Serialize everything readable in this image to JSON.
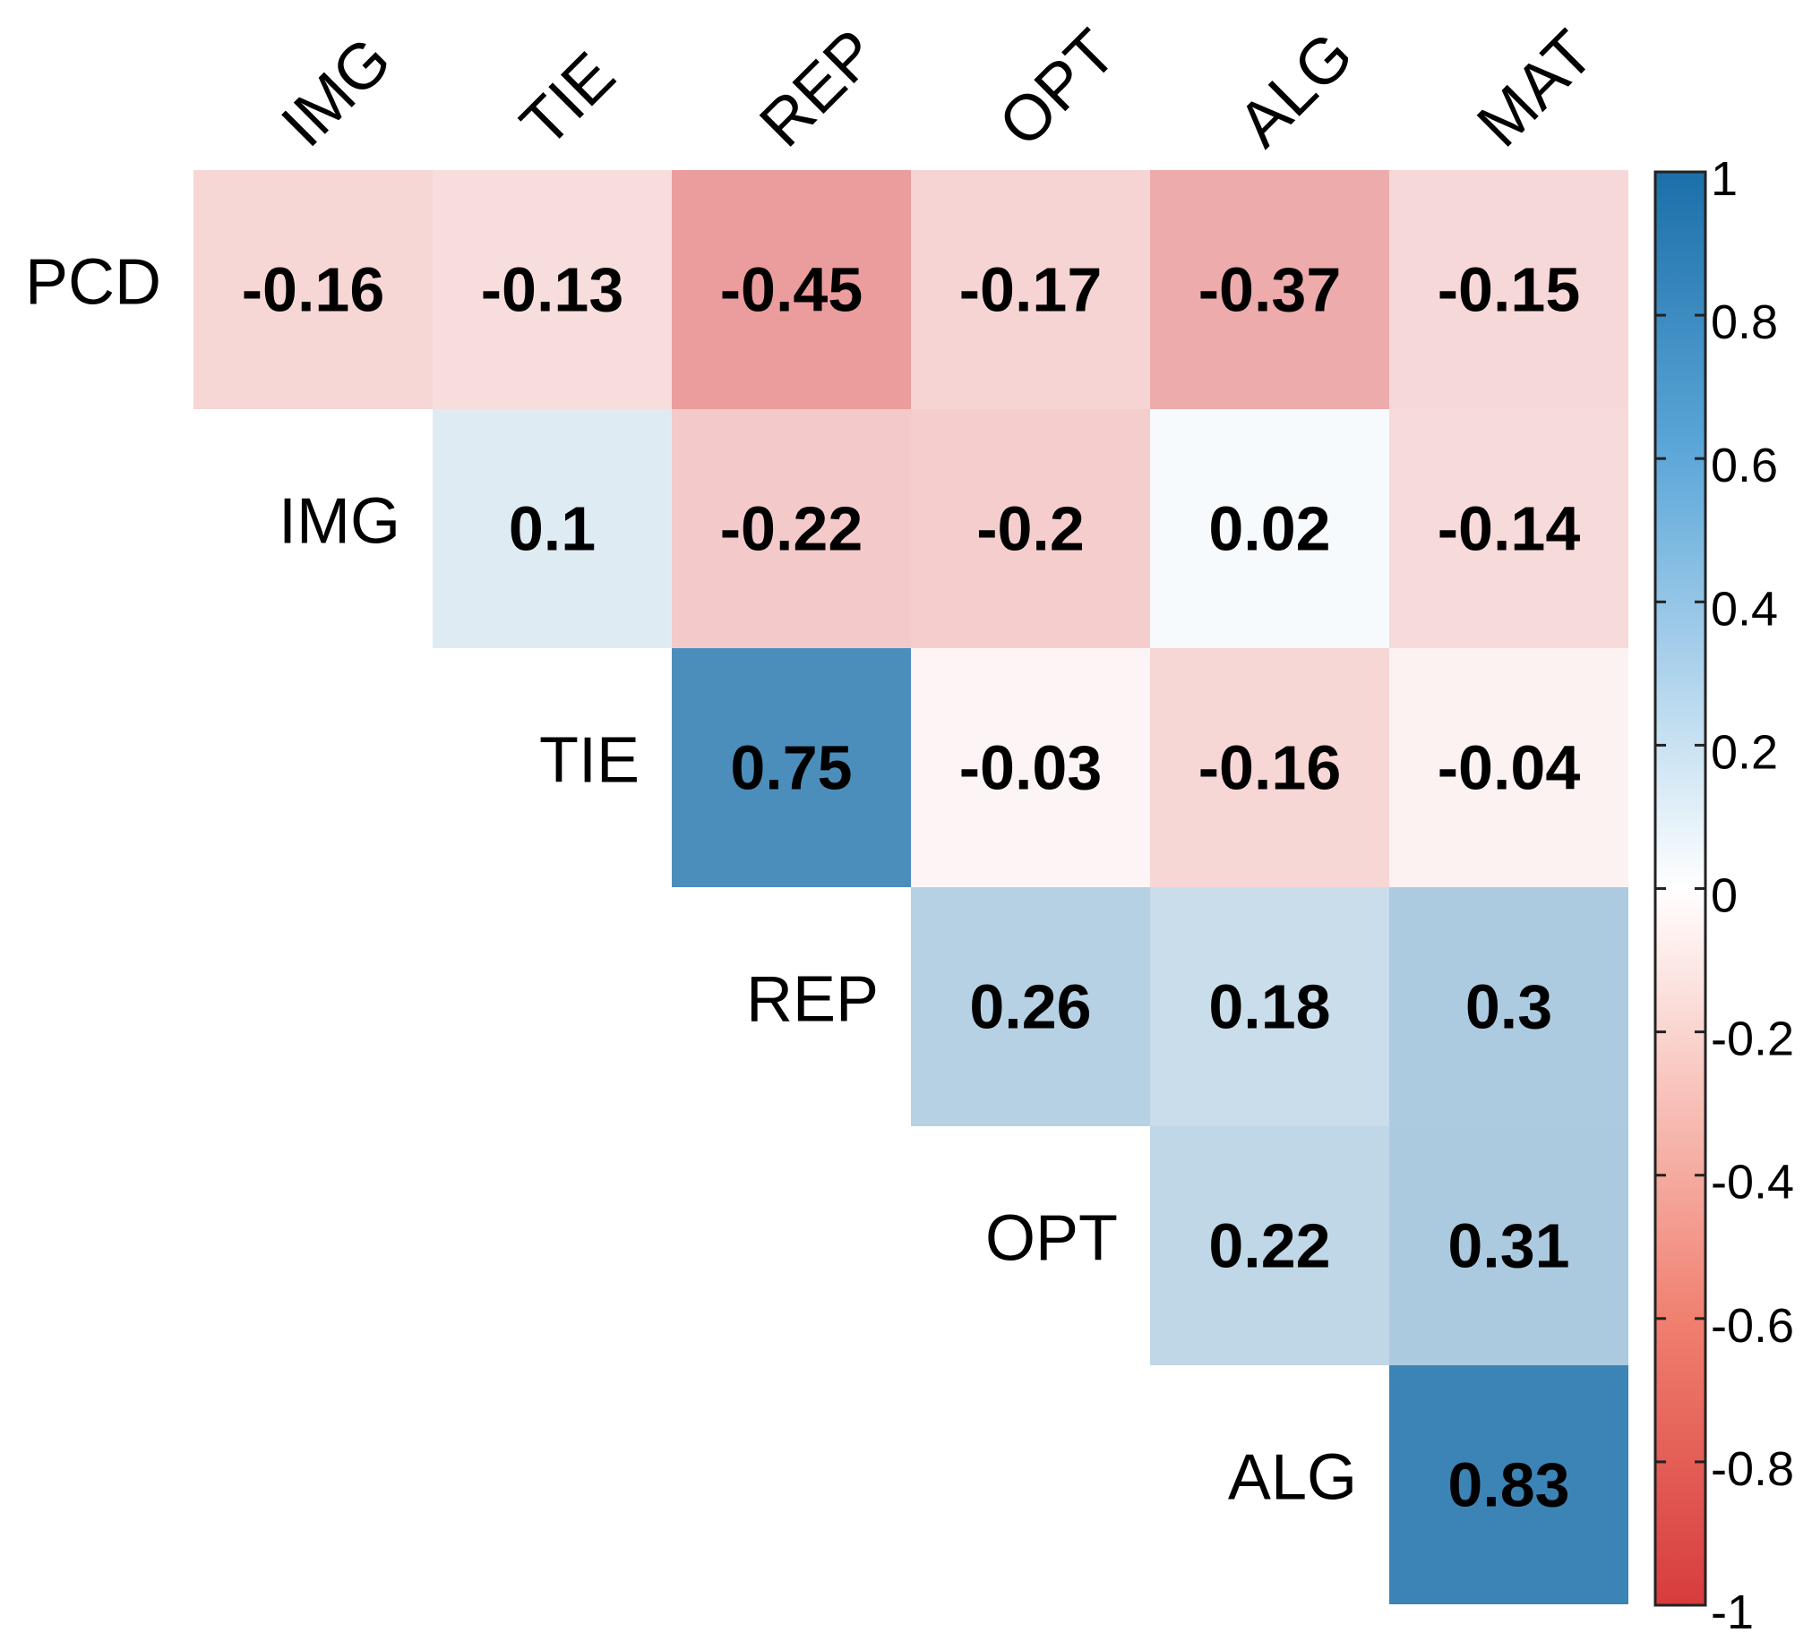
{
  "chart_data": {
    "type": "heatmap",
    "title": "",
    "xlabel": "",
    "ylabel": "",
    "columns": [
      "IMG",
      "TIE",
      "REP",
      "OPT",
      "ALG",
      "MAT"
    ],
    "rows": [
      "PCD",
      "IMG",
      "TIE",
      "REP",
      "OPT",
      "ALG"
    ],
    "cells": [
      {
        "row": 0,
        "col": 0,
        "value": -0.16,
        "label": "-0.16"
      },
      {
        "row": 0,
        "col": 1,
        "value": -0.13,
        "label": "-0.13"
      },
      {
        "row": 0,
        "col": 2,
        "value": -0.45,
        "label": "-0.45"
      },
      {
        "row": 0,
        "col": 3,
        "value": -0.17,
        "label": "-0.17"
      },
      {
        "row": 0,
        "col": 4,
        "value": -0.37,
        "label": "-0.37"
      },
      {
        "row": 0,
        "col": 5,
        "value": -0.15,
        "label": "-0.15"
      },
      {
        "row": 1,
        "col": 1,
        "value": 0.1,
        "label": "0.1"
      },
      {
        "row": 1,
        "col": 2,
        "value": -0.22,
        "label": "-0.22"
      },
      {
        "row": 1,
        "col": 3,
        "value": -0.2,
        "label": "-0.2"
      },
      {
        "row": 1,
        "col": 4,
        "value": 0.02,
        "label": "0.02"
      },
      {
        "row": 1,
        "col": 5,
        "value": -0.14,
        "label": "-0.14"
      },
      {
        "row": 2,
        "col": 2,
        "value": 0.75,
        "label": "0.75"
      },
      {
        "row": 2,
        "col": 3,
        "value": -0.03,
        "label": "-0.03"
      },
      {
        "row": 2,
        "col": 4,
        "value": -0.16,
        "label": "-0.16"
      },
      {
        "row": 2,
        "col": 5,
        "value": -0.04,
        "label": "-0.04"
      },
      {
        "row": 3,
        "col": 3,
        "value": 0.26,
        "label": "0.26"
      },
      {
        "row": 3,
        "col": 4,
        "value": 0.18,
        "label": "0.18"
      },
      {
        "row": 3,
        "col": 5,
        "value": 0.3,
        "label": "0.3"
      },
      {
        "row": 4,
        "col": 4,
        "value": 0.22,
        "label": "0.22"
      },
      {
        "row": 4,
        "col": 5,
        "value": 0.31,
        "label": "0.31"
      },
      {
        "row": 5,
        "col": 5,
        "value": 0.83,
        "label": "0.83"
      }
    ],
    "colorbar": {
      "range": [
        -1,
        1
      ],
      "ticks": [
        {
          "value": 1,
          "label": "1"
        },
        {
          "value": 0.8,
          "label": "0.8"
        },
        {
          "value": 0.6,
          "label": "0.6"
        },
        {
          "value": 0.4,
          "label": "0.4"
        },
        {
          "value": 0.2,
          "label": "0.2"
        },
        {
          "value": 0,
          "label": "0"
        },
        {
          "value": -0.2,
          "label": "-0.2"
        },
        {
          "value": -0.4,
          "label": "-0.4"
        },
        {
          "value": -0.6,
          "label": "-0.6"
        },
        {
          "value": -0.8,
          "label": "-0.8"
        },
        {
          "value": -1,
          "label": "-1"
        }
      ],
      "color_negative": "#D73C3C",
      "color_zero": "#FFFFFF",
      "color_positive": "#1B6FA8"
    },
    "grid": false,
    "legend": "right"
  }
}
